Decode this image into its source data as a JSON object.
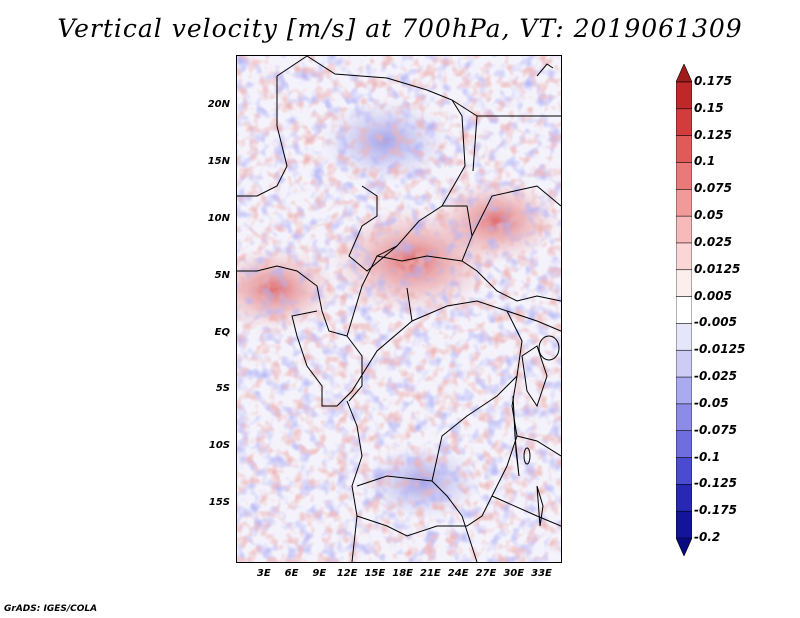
{
  "title": "Vertical velocity [m/s] at 700hPa, VT: 2019061309",
  "credit": "GrADS: IGES/COLA",
  "lat_labels": [
    "20N",
    "15N",
    "10N",
    "5N",
    "EQ",
    "5S",
    "10S",
    "15S"
  ],
  "lon_labels": [
    "3E",
    "6E",
    "9E",
    "12E",
    "15E",
    "18E",
    "21E",
    "24E",
    "27E",
    "30E",
    "33E"
  ],
  "colorbar": {
    "levels": [
      "0.175",
      "0.15",
      "0.125",
      "0.1",
      "0.075",
      "0.05",
      "0.025",
      "0.0125",
      "0.005",
      "-0.005",
      "-0.0125",
      "-0.025",
      "-0.05",
      "-0.075",
      "-0.1",
      "-0.125",
      "-0.175",
      "-0.2"
    ],
    "colors": [
      "#a01c1c",
      "#be2828",
      "#d23c3c",
      "#e05a5a",
      "#ea7a7a",
      "#f29a9a",
      "#f7baba",
      "#fad6d6",
      "#fdeeee",
      "#ffffff",
      "#e6e6fa",
      "#ccccf5",
      "#aaaaf0",
      "#8c8ce8",
      "#6e6ede",
      "#4b4bd2",
      "#2828b4",
      "#14149a",
      "#0a0a80"
    ]
  },
  "field_regions": [
    {
      "name": "west-coast-ascent",
      "sign": "up",
      "lon": 4,
      "lat": 4,
      "strength": 0.06
    },
    {
      "name": "central-african-ascent",
      "sign": "up",
      "lon": 19,
      "lat": 6.5,
      "strength": 0.12
    },
    {
      "name": "sahel-subsidence",
      "sign": "down",
      "lon": 16,
      "lat": 17,
      "strength": -0.06
    },
    {
      "name": "east-ascent",
      "sign": "up",
      "lon": 28,
      "lat": 10,
      "strength": 0.06
    },
    {
      "name": "southern-subsidence",
      "sign": "down",
      "lon": 20,
      "lat": -13,
      "strength": -0.04
    }
  ]
}
